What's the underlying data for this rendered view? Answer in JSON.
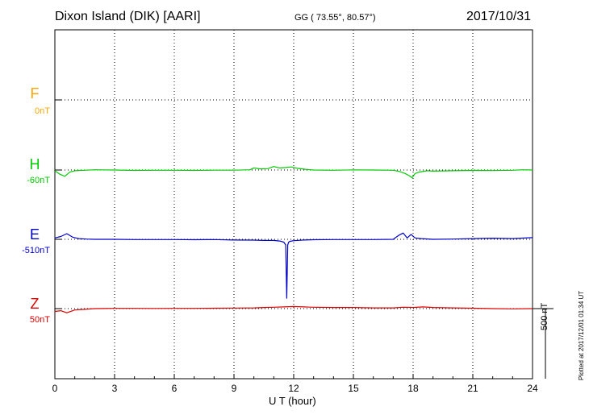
{
  "header": {
    "title": "Dixon Island (DIK)  [AARI]",
    "coords": "GG ( 73.55°,  80.57°)",
    "date": "2017/10/31"
  },
  "components": [
    {
      "name": "F",
      "baseline": "0nT",
      "color": "#ffa500"
    },
    {
      "name": "H",
      "baseline": "-60nT",
      "color": "#00cc00"
    },
    {
      "name": "E",
      "baseline": "-510nT",
      "color": "#0000cc"
    },
    {
      "name": "Z",
      "baseline": "50nT",
      "color": "#dd0000"
    }
  ],
  "footer": {
    "xlabel": "U T (hour)",
    "scale_label": "500 nT",
    "plotted": "Plotted at 2017/12/01 01:34 UT"
  },
  "chart_data": {
    "type": "line",
    "x_unit": "hour (UT)",
    "xlim": [
      0,
      24
    ],
    "x_ticks": [
      0,
      3,
      6,
      9,
      12,
      15,
      18,
      21,
      24
    ],
    "x_tick_labels": [
      "0",
      "3",
      "6",
      "9",
      "12",
      "15",
      "18",
      "21",
      "24"
    ],
    "grid": true,
    "y_unit": "nT",
    "scale_bar_nT": 500,
    "series": [
      {
        "name": "F",
        "baseline_nT": 0,
        "color": "#ffa500",
        "x": [],
        "offset_nT": []
      },
      {
        "name": "H",
        "baseline_nT": -60,
        "color": "#00cc00",
        "x": [
          0,
          0.25,
          0.5,
          0.75,
          1.0,
          1.5,
          2,
          3,
          4,
          5,
          6,
          7,
          8,
          9,
          9.8,
          10.0,
          10.3,
          10.7,
          11.0,
          11.3,
          11.6,
          11.9,
          12.2,
          12.6,
          13,
          14,
          15,
          16,
          17,
          17.3,
          17.6,
          17.8,
          17.95,
          18.1,
          18.3,
          18.7,
          19,
          20,
          21,
          22,
          23,
          23.5,
          24
        ],
        "offset_nT": [
          -5,
          -30,
          -45,
          -15,
          -5,
          -2,
          2,
          0,
          -3,
          -2,
          -2,
          -3,
          -1,
          -1,
          2,
          15,
          8,
          10,
          25,
          15,
          18,
          22,
          12,
          5,
          0,
          -2,
          1,
          0,
          -2,
          -10,
          -25,
          -40,
          -55,
          -25,
          -15,
          -5,
          -8,
          -5,
          -3,
          -4,
          -2,
          2,
          0
        ]
      },
      {
        "name": "E",
        "baseline_nT": -510,
        "color": "#0000cc",
        "x": [
          0,
          0.3,
          0.6,
          0.9,
          1.2,
          1.6,
          2,
          3,
          4,
          5,
          6,
          7,
          8,
          9,
          10,
          10.5,
          11,
          11.3,
          11.5,
          11.6,
          11.65,
          11.7,
          11.75,
          11.8,
          12,
          12.5,
          13,
          14,
          15,
          16,
          17,
          17.3,
          17.5,
          17.7,
          17.9,
          18.1,
          18.4,
          19,
          20,
          21,
          22,
          23,
          24
        ],
        "offset_nT": [
          10,
          20,
          40,
          15,
          5,
          2,
          0,
          0,
          -2,
          -2,
          -2,
          -3,
          -2,
          -5,
          -6,
          -8,
          -8,
          -12,
          -20,
          -40,
          -420,
          -40,
          -20,
          -15,
          -10,
          -5,
          -3,
          -2,
          -2,
          -2,
          0,
          30,
          45,
          10,
          35,
          10,
          5,
          0,
          2,
          5,
          8,
          5,
          12
        ]
      },
      {
        "name": "Z",
        "baseline_nT": 50,
        "color": "#dd0000",
        "x": [
          0,
          0.3,
          0.6,
          1.0,
          1.5,
          2,
          3,
          4,
          5,
          6,
          7,
          8,
          9,
          10,
          10.5,
          11,
          11.5,
          12,
          12.5,
          13,
          14,
          15,
          16,
          17,
          17.5,
          18,
          18.5,
          19,
          20,
          21,
          22,
          23,
          24
        ],
        "offset_nT": [
          -20,
          -15,
          -30,
          -10,
          -5,
          0,
          2,
          2,
          1,
          2,
          2,
          3,
          4,
          5,
          8,
          10,
          12,
          15,
          12,
          10,
          8,
          8,
          5,
          5,
          10,
          8,
          12,
          8,
          5,
          3,
          0,
          -2,
          0
        ]
      }
    ]
  }
}
